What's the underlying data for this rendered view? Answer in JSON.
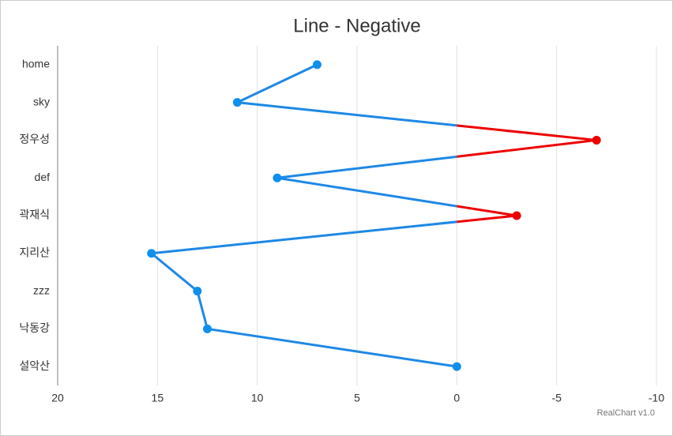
{
  "chart_data": {
    "type": "line",
    "orientation": "horizontal",
    "title": "Line - Negative",
    "categories": [
      "home",
      "sky",
      "정우성",
      "def",
      "곽재식",
      "지리산",
      "zzz",
      "낙동강",
      "설악산"
    ],
    "values": [
      7,
      11,
      -7,
      9,
      -3,
      15.3,
      13,
      12.5,
      0
    ],
    "color": "#1e88e5",
    "point_color": "#0f8fee",
    "negative_color": "#ee0000",
    "xlim": [
      20,
      -10
    ],
    "xticks": [
      20,
      15,
      10,
      5,
      0,
      -5,
      -10
    ],
    "grid": true,
    "credit": "RealChart v1.0"
  }
}
